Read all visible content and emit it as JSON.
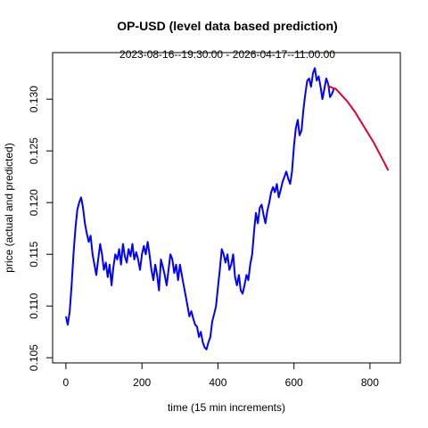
{
  "chart_data": {
    "type": "line",
    "title": "OP-USD (level data based prediction)",
    "subtitle": "2023-08-16--19:30:00  -  2026-04-17--11:00:00",
    "xlabel": "time (15 min increments)",
    "ylabel": "price (actual and predicted)",
    "xlim": [
      -35,
      880
    ],
    "ylim": [
      0.1045,
      0.1345
    ],
    "xticks": [
      0,
      200,
      400,
      600,
      800
    ],
    "yticks": [
      0.105,
      0.11,
      0.115,
      0.12,
      0.125,
      0.13
    ],
    "ytick_labels": [
      "0.105",
      "0.110",
      "0.115",
      "0.120",
      "0.125",
      "0.130"
    ],
    "grid": false,
    "colors": {
      "actual": "#0000ff",
      "predicted": "#dd0033"
    },
    "series": [
      {
        "role": "actual",
        "x": [
          0,
          5,
          10,
          15,
          20,
          25,
          30,
          35,
          40,
          45,
          50,
          55,
          60,
          65,
          70,
          75,
          80,
          85,
          90,
          95,
          100,
          105,
          110,
          115,
          120,
          125,
          130,
          135,
          140,
          145,
          150,
          155,
          160,
          165,
          170,
          175,
          180,
          185,
          190,
          195,
          200,
          205,
          210,
          215,
          220,
          225,
          230,
          235,
          240,
          245,
          250,
          255,
          260,
          265,
          270,
          275,
          280,
          285,
          290,
          295,
          300,
          305,
          310,
          315,
          320,
          325,
          330,
          335,
          340,
          345,
          350,
          355,
          360,
          365,
          370,
          375,
          380,
          385,
          390,
          395,
          400,
          405,
          410,
          415,
          420,
          425,
          430,
          435,
          440,
          445,
          450,
          455,
          460,
          465,
          470,
          475,
          480,
          485,
          490,
          495,
          500,
          505,
          510,
          515,
          520,
          525,
          530,
          535,
          540,
          545,
          550,
          555,
          560,
          565,
          570,
          575,
          580,
          585,
          590,
          595,
          600,
          605,
          610,
          615,
          620,
          625,
          630,
          635,
          640,
          645,
          650,
          655,
          660,
          665,
          670,
          675,
          680,
          685,
          690,
          695,
          700,
          705
        ],
        "y": [
          0.109,
          0.1082,
          0.1095,
          0.112,
          0.115,
          0.1175,
          0.1193,
          0.12,
          0.1205,
          0.1195,
          0.118,
          0.117,
          0.1162,
          0.1168,
          0.115,
          0.114,
          0.113,
          0.1145,
          0.116,
          0.115,
          0.1135,
          0.1142,
          0.1128,
          0.114,
          0.112,
          0.1138,
          0.115,
          0.1145,
          0.1155,
          0.114,
          0.116,
          0.1148,
          0.1142,
          0.1155,
          0.1148,
          0.116,
          0.1145,
          0.1152,
          0.1145,
          0.1135,
          0.115,
          0.1158,
          0.115,
          0.1162,
          0.115,
          0.1135,
          0.1125,
          0.114,
          0.113,
          0.1115,
          0.1145,
          0.1138,
          0.113,
          0.112,
          0.1135,
          0.115,
          0.1145,
          0.1132,
          0.114,
          0.1125,
          0.114,
          0.113,
          0.112,
          0.111,
          0.11,
          0.109,
          0.1095,
          0.1088,
          0.1082,
          0.108,
          0.107,
          0.1075,
          0.1065,
          0.106,
          0.1058,
          0.1065,
          0.107,
          0.1085,
          0.1092,
          0.11,
          0.1118,
          0.1135,
          0.1155,
          0.115,
          0.1142,
          0.115,
          0.1135,
          0.114,
          0.115,
          0.1128,
          0.112,
          0.113,
          0.1115,
          0.1112,
          0.112,
          0.113,
          0.1125,
          0.114,
          0.115,
          0.1172,
          0.119,
          0.118,
          0.1195,
          0.1198,
          0.1188,
          0.118,
          0.1192,
          0.12,
          0.121,
          0.1215,
          0.121,
          0.1218,
          0.1205,
          0.1212,
          0.122,
          0.1225,
          0.123,
          0.1223,
          0.1218,
          0.123,
          0.1255,
          0.1272,
          0.128,
          0.1265,
          0.127,
          0.129,
          0.1305,
          0.1318,
          0.132,
          0.1312,
          0.1325,
          0.133,
          0.1318,
          0.1322,
          0.1312,
          0.13,
          0.131,
          0.132,
          0.1315,
          0.1302,
          0.1305,
          0.131
        ]
      },
      {
        "role": "predicted",
        "x": [
          690,
          700,
          710,
          720,
          730,
          740,
          750,
          760,
          770,
          780,
          790,
          800,
          810,
          820,
          830,
          840,
          848
        ],
        "y": [
          0.1313,
          0.1311,
          0.131,
          0.1306,
          0.1302,
          0.1298,
          0.1293,
          0.1288,
          0.1282,
          0.1276,
          0.127,
          0.1264,
          0.1258,
          0.1251,
          0.1244,
          0.1237,
          0.1231
        ]
      }
    ]
  }
}
